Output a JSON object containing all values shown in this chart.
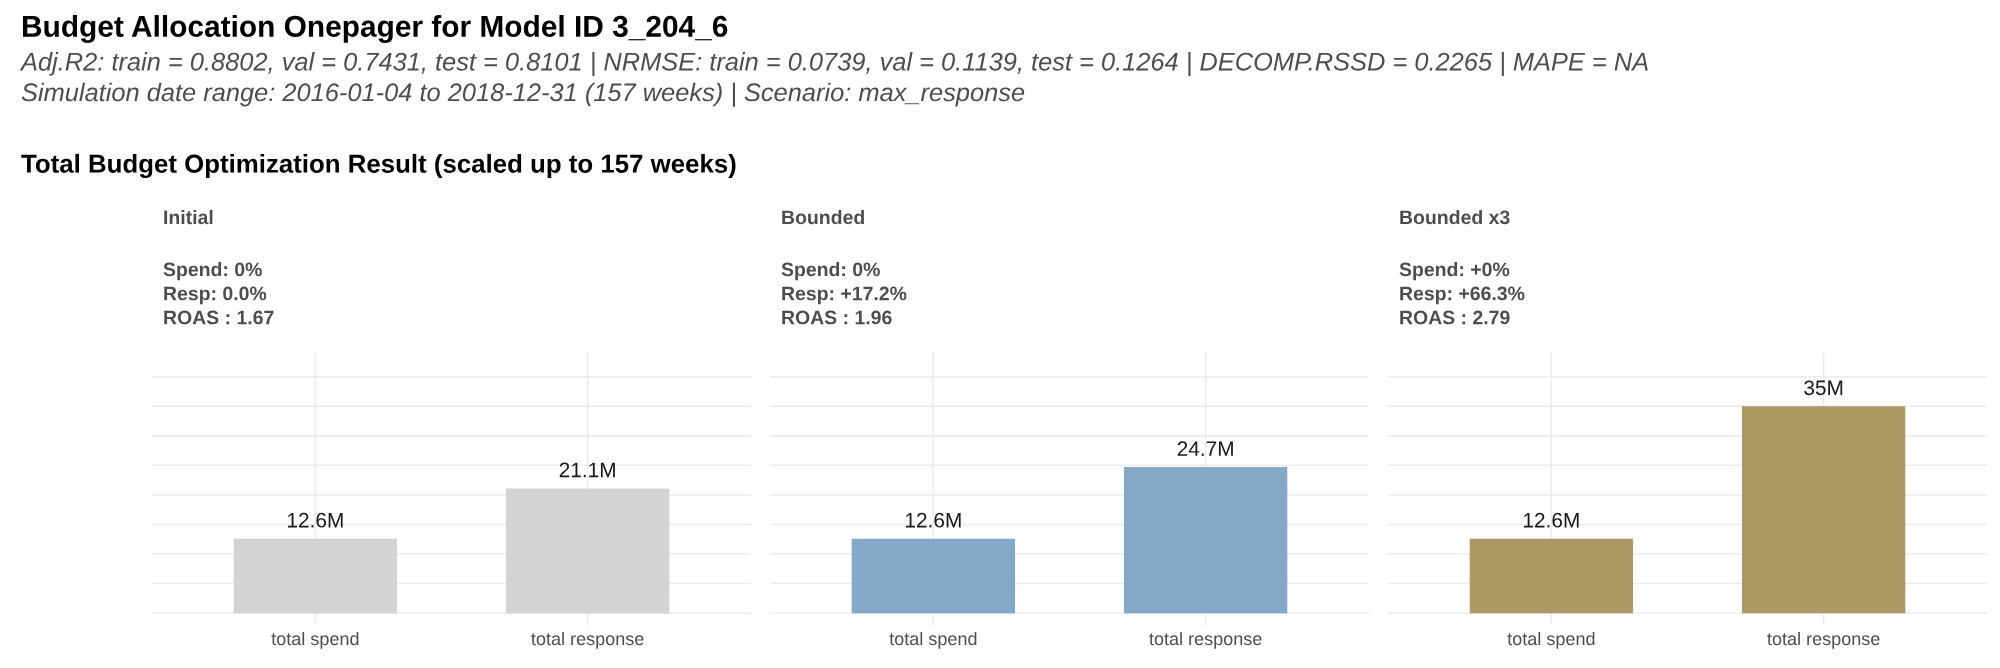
{
  "chart_data": [
    {
      "type": "other",
      "title": "Budget Allocation Onepager for Model ID 3_204_6",
      "subtitle": "Adj.R2: train = 0.8802, val = 0.7431, test = 0.8101 | NRMSE: train = 0.0739, val = 0.1139, test = 0.1264 | DECOMP.RSSD = 0.2265 | MAPE = NA\nSimulation date range: 2016-01-04 to 2018-12-31 (157 weeks) | Scenario: max_response",
      "annotations": [
        "Total Budget Optimization Result (scaled up to 157 weeks)"
      ]
    },
    {
      "type": "bar",
      "title": "Initial",
      "subtitle": "Spend: 0%\nResp: 0.0%\nROAS : 1.67",
      "categories": [
        "total spend",
        "total response"
      ],
      "values": [
        12.6,
        21.1
      ],
      "value_labels": [
        "12.6M",
        "21.1M"
      ],
      "color": "#d3d3d3",
      "ylim": [
        -2,
        44
      ],
      "yticks": [
        {
          "value": 0,
          "label": null
        },
        {
          "value": 5,
          "label": null
        },
        {
          "value": 10,
          "label": null
        },
        {
          "value": 15,
          "label": null
        },
        {
          "value": 20,
          "label": null
        },
        {
          "value": 25,
          "label": null
        },
        {
          "value": 30,
          "label": null
        },
        {
          "value": 35,
          "label": null
        },
        {
          "value": 40,
          "label": null
        }
      ],
      "tick_labels": "x",
      "grid": true
    },
    {
      "type": "bar",
      "title": "Bounded",
      "subtitle": "Spend: 0%\nResp: +17.2%\nROAS : 1.96",
      "categories": [
        "total spend",
        "total response"
      ],
      "values": [
        12.6,
        24.7
      ],
      "value_labels": [
        "12.6M",
        "24.7M"
      ],
      "color": "#84a9c8",
      "ylim": [
        -2,
        44
      ],
      "yticks": [
        {
          "value": 0,
          "label": null
        },
        {
          "value": 5,
          "label": null
        },
        {
          "value": 10,
          "label": null
        },
        {
          "value": 15,
          "label": null
        },
        {
          "value": 20,
          "label": null
        },
        {
          "value": 25,
          "label": null
        },
        {
          "value": 30,
          "label": null
        },
        {
          "value": 35,
          "label": null
        },
        {
          "value": 40,
          "label": null
        }
      ],
      "tick_labels": "x",
      "grid": true
    },
    {
      "type": "bar",
      "title": "Bounded x3",
      "subtitle": "Spend: +0%\nResp: +66.3%\nROAS : 2.79",
      "categories": [
        "total spend",
        "total response"
      ],
      "values": [
        12.6,
        35
      ],
      "value_labels": [
        "12.6M",
        "35M"
      ],
      "color": "#ae9965",
      "ylim": [
        -2,
        44
      ],
      "yticks": [
        {
          "value": 0,
          "label": null
        },
        {
          "value": 5,
          "label": null
        },
        {
          "value": 10,
          "label": null
        },
        {
          "value": 15,
          "label": null
        },
        {
          "value": 20,
          "label": null
        },
        {
          "value": 25,
          "label": null
        },
        {
          "value": 30,
          "label": null
        },
        {
          "value": 35,
          "label": null
        },
        {
          "value": 40,
          "label": null
        }
      ],
      "tick_labels": "x",
      "grid": true
    }
  ]
}
